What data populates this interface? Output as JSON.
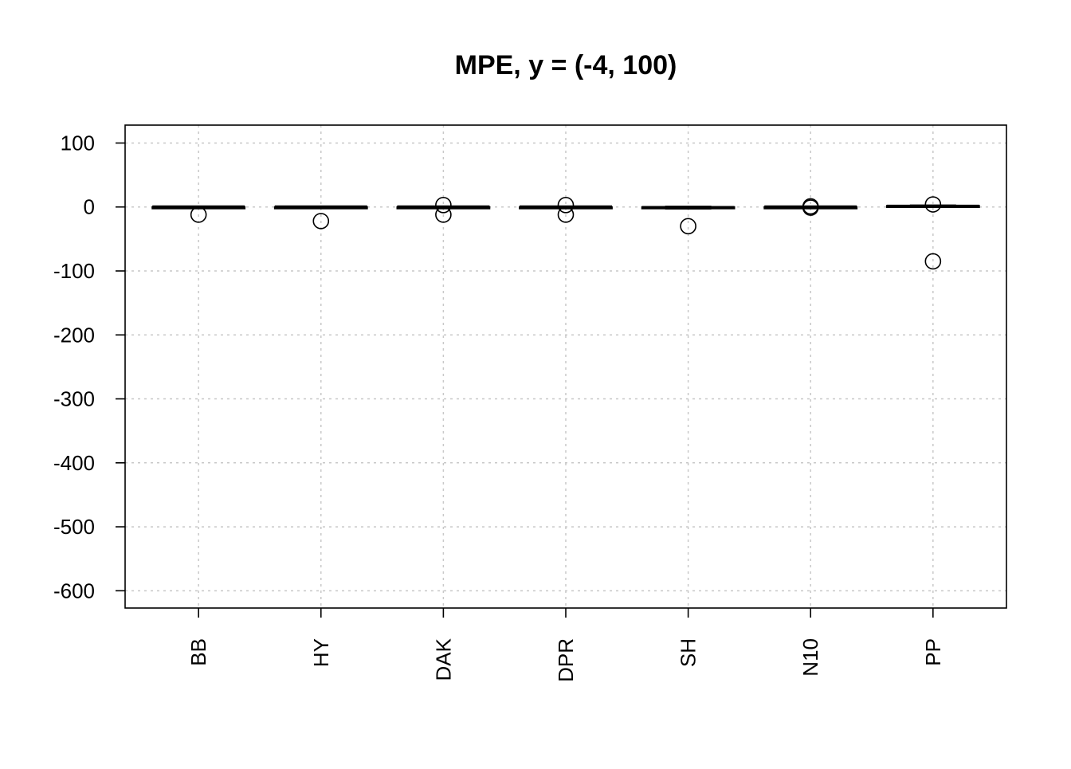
{
  "chart_data": {
    "type": "boxplot",
    "title": "MPE, y = (-4, 100)",
    "xlabel": "",
    "ylabel": "",
    "ylim": [
      -627,
      128
    ],
    "y_ticks": [
      100,
      0,
      -100,
      -200,
      -300,
      -400,
      -500,
      -600
    ],
    "y_tick_labels": [
      "100",
      "0",
      "-100",
      "-200",
      "-300",
      "-400",
      "-500",
      "-600"
    ],
    "grid": true,
    "categories": [
      "BB",
      "HY",
      "DAK",
      "DPR",
      "SH",
      "N10",
      "PP"
    ],
    "boxes": [
      {
        "category": "BB",
        "whisker_low": -1,
        "q1": -1,
        "median": 0,
        "q3": 0,
        "whisker_high": 1
      },
      {
        "category": "HY",
        "whisker_low": -1,
        "q1": -1,
        "median": 0,
        "q3": 0,
        "whisker_high": 1
      },
      {
        "category": "DAK",
        "whisker_low": -1,
        "q1": -1,
        "median": 0,
        "q3": 0,
        "whisker_high": 1
      },
      {
        "category": "DPR",
        "whisker_low": -1,
        "q1": -1,
        "median": 0,
        "q3": 0,
        "whisker_high": 1
      },
      {
        "category": "SH",
        "whisker_low": -3,
        "q1": -2.5,
        "median": -1,
        "q3": 0,
        "whisker_high": 1
      },
      {
        "category": "N10",
        "whisker_low": -1,
        "q1": -1,
        "median": 0,
        "q3": 0,
        "whisker_high": 1
      },
      {
        "category": "PP",
        "whisker_low": 0,
        "q1": 0.5,
        "median": 1,
        "q3": 2,
        "whisker_high": 3
      }
    ],
    "outliers": [
      {
        "category": "BB",
        "values": [
          -12
        ]
      },
      {
        "category": "HY",
        "values": [
          -22
        ]
      },
      {
        "category": "DAK",
        "values": [
          3,
          -12
        ]
      },
      {
        "category": "DPR",
        "values": [
          3,
          -12
        ]
      },
      {
        "category": "SH",
        "values": [
          -30
        ]
      },
      {
        "category": "N10",
        "values": [
          1,
          -1
        ]
      },
      {
        "category": "PP",
        "values": [
          4,
          -85
        ]
      }
    ],
    "colors": {
      "stroke": "#000000",
      "grid": "#c8c8c8",
      "background": "#ffffff"
    }
  }
}
